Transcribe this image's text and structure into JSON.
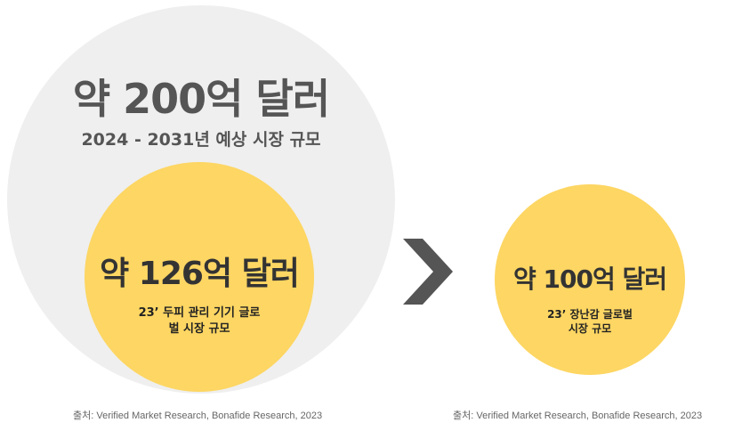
{
  "colors": {
    "grey_circle": "#efefef",
    "yellow_circle": "#fdd663",
    "arrow": "#555555"
  },
  "forecast": {
    "value": "약 200억 달러",
    "label": "2024 - 2031년 예상 시장 규모"
  },
  "head_care": {
    "value": "약 126억 달러",
    "label_line1": "23’ 두피 관리 기기 글로",
    "label_line2": "벌 시장 규모"
  },
  "toy": {
    "value": "약 100억 달러",
    "label_line1": "23’ 장난감 글로벌",
    "label_line2": "시장 규모"
  },
  "comparison_icon": "greater-than-chevron",
  "sources": {
    "left": "출처: Verified Market Research, Bonafide Research, 2023",
    "right": "출처: Verified Market Research, Bonafide Research, 2023"
  }
}
